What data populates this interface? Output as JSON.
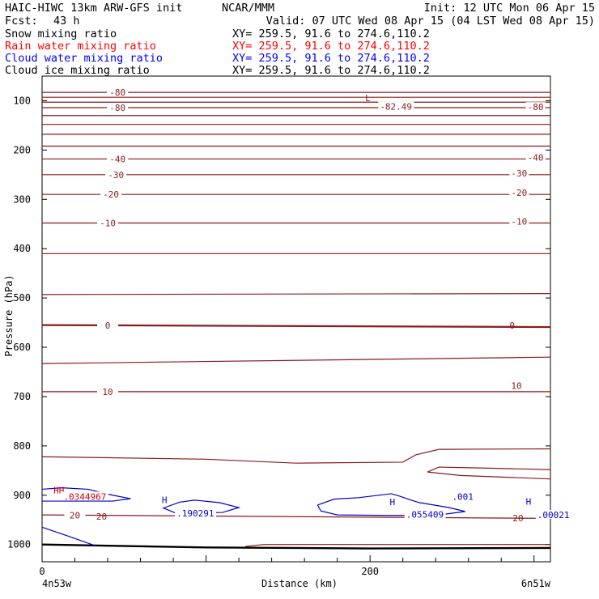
{
  "header": {
    "model": "HAIC-HIWC 13km ARW-GFS init",
    "org": "NCAR/MMM",
    "init": "Init: 12 UTC Mon 06 Apr 15",
    "fcst_label": "Fcst:",
    "fcst_value": "43 h",
    "valid": "Valid: 07 UTC Wed 08 Apr 15 (04 LST Wed 08 Apr 15)"
  },
  "legend": [
    {
      "label": "Snow mixing ratio",
      "xy": "XY= 259.5, 91.6 to 274.6,110.2",
      "color": "#000000"
    },
    {
      "label": "Rain water mixing ratio",
      "xy": "XY= 259.5, 91.6 to 274.6,110.2",
      "color": "#ff0000"
    },
    {
      "label": "Cloud water mixing ratio",
      "xy": "XY= 259.5, 91.6 to 274.6,110.2",
      "color": "#0000ff"
    },
    {
      "label": "Cloud ice mixing ratio",
      "xy": "XY= 259.5, 91.6 to 274.6,110.2",
      "color": "#000000"
    }
  ],
  "chart_data": {
    "type": "cross-section contour",
    "xlabel": "Distance (km)",
    "ylabel": "Pressure (hPa)",
    "x_ticks": [
      "0",
      "200"
    ],
    "x_range": [
      0,
      310
    ],
    "y_ticks": [
      "100",
      "200",
      "300",
      "400",
      "500",
      "600",
      "700",
      "800",
      "900",
      "1000"
    ],
    "y_range": [
      50,
      1035
    ],
    "endpoints": {
      "left": "4n53w",
      "right": "6n51w"
    },
    "colors": {
      "temperature": "#8b1a1a",
      "cloud_water": "#0000cc",
      "ground": "#000000"
    },
    "temperature_contours": [
      {
        "label": "-80",
        "y": [
          83,
          83
        ]
      },
      {
        "label": "",
        "y": [
          93,
          93
        ]
      },
      {
        "label": "",
        "y": [
          103,
          103
        ]
      },
      {
        "label": "-80",
        "y": [
          114,
          114
        ]
      },
      {
        "label": "",
        "y": [
          130,
          130
        ]
      },
      {
        "label": "",
        "y": [
          148,
          148
        ]
      },
      {
        "label": "",
        "y": [
          168,
          168
        ]
      },
      {
        "label": "",
        "y": [
          192,
          192
        ]
      },
      {
        "label": "-40",
        "y": [
          218,
          218
        ]
      },
      {
        "label": "-30",
        "y": [
          250,
          250
        ]
      },
      {
        "label": "-20",
        "y": [
          290,
          290
        ]
      },
      {
        "label": "-10",
        "y": [
          348,
          348
        ]
      },
      {
        "label": "",
        "y": [
          410,
          410
        ]
      },
      {
        "label": "",
        "y": [
          493,
          491
        ]
      },
      {
        "label": "0",
        "y": [
          555,
          559
        ]
      },
      {
        "label": "",
        "y": [
          633,
          620
        ]
      },
      {
        "label": "10",
        "y": [
          690,
          690
        ]
      },
      {
        "label": "20",
        "y": [
          940,
          947
        ]
      }
    ],
    "extra_contour_lines": [
      {
        "points": [
          [
            0,
            822
          ],
          [
            100,
            827
          ],
          [
            155,
            835
          ],
          [
            220,
            833
          ],
          [
            228,
            818
          ],
          [
            242,
            807
          ],
          [
            310,
            806
          ]
        ]
      },
      {
        "points": [
          [
            235,
            853
          ],
          [
            242,
            843
          ],
          [
            270,
            845
          ],
          [
            310,
            848
          ]
        ]
      },
      {
        "points": [
          [
            235,
            853
          ],
          [
            255,
            860
          ],
          [
            310,
            867
          ]
        ]
      },
      {
        "points": [
          [
            124,
            1004
          ],
          [
            135,
            1000
          ],
          [
            200,
            1000
          ],
          [
            310,
            1000
          ]
        ]
      }
    ],
    "ground_surface": [
      [
        0,
        1000
      ],
      [
        100,
        1006
      ],
      [
        200,
        1008
      ],
      [
        310,
        1007
      ]
    ],
    "cloud_water_regions": [
      {
        "points": [
          [
            0,
            888
          ],
          [
            12,
            885
          ],
          [
            28,
            888
          ],
          [
            43,
            900
          ],
          [
            54,
            907
          ],
          [
            43,
            912
          ],
          [
            20,
            912
          ],
          [
            0,
            912
          ]
        ]
      },
      {
        "points": [
          [
            93,
            910
          ],
          [
            108,
            915
          ],
          [
            120,
            925
          ],
          [
            110,
            935
          ],
          [
            82,
            937
          ],
          [
            74,
            926
          ],
          [
            84,
            914
          ],
          [
            93,
            910
          ]
        ]
      },
      {
        "points": [
          [
            168,
            920
          ],
          [
            178,
            908
          ],
          [
            193,
            905
          ],
          [
            213,
            897
          ],
          [
            218,
            902
          ],
          [
            225,
            910
          ],
          [
            230,
            915
          ],
          [
            248,
            925
          ],
          [
            258,
            933
          ],
          [
            240,
            941
          ],
          [
            210,
            941
          ],
          [
            180,
            940
          ],
          [
            170,
            932
          ],
          [
            168,
            920
          ]
        ]
      },
      {
        "points": [
          [
            0,
            965
          ],
          [
            15,
            982
          ],
          [
            33,
            1003
          ]
        ]
      }
    ],
    "annotations": [
      {
        "text": "L",
        "x": 197,
        "y": 98
      },
      {
        "text": "-82.49",
        "x": 206,
        "y": 115
      },
      {
        "text": "HH",
        "x": 7,
        "y": 893
      },
      {
        "text": ".0344967",
        "x": 13,
        "y": 906
      },
      {
        "text": "H",
        "x": 73,
        "y": 913
      },
      {
        "text": ".190291",
        "x": 82,
        "y": 940
      },
      {
        "text": "H",
        "x": 212,
        "y": 917
      },
      {
        "text": ".055409",
        "x": 222,
        "y": 942
      },
      {
        "text": ".001",
        "x": 250,
        "y": 906
      },
      {
        "text": "H",
        "x": 295,
        "y": 916
      },
      {
        "text": ".00021",
        "x": 302,
        "y": 943
      },
      {
        "text": "20",
        "x": 33,
        "y": 946
      },
      {
        "text": "20",
        "x": 287,
        "y": 950
      },
      {
        "text": "-40",
        "x": 296,
        "y": 218
      },
      {
        "text": "-30",
        "x": 286,
        "y": 250
      },
      {
        "text": "-20",
        "x": 286,
        "y": 290
      },
      {
        "text": "-10",
        "x": 286,
        "y": 348
      },
      {
        "text": "0",
        "x": 285,
        "y": 559
      },
      {
        "text": "10",
        "x": 286,
        "y": 681
      },
      {
        "text": "-80",
        "x": 296,
        "y": 116
      }
    ]
  }
}
